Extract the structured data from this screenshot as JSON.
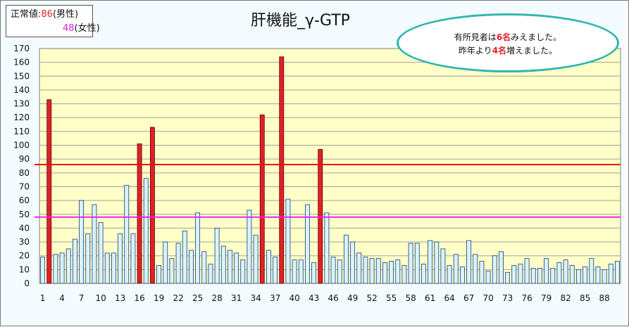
{
  "legend": {
    "label": "正常値:",
    "male_value": "86",
    "male_unit": "(男性)",
    "female_value": "48",
    "female_unit": "(女性)"
  },
  "note": {
    "line1_prefix": "有所見者は",
    "line1_count": "6名",
    "line1_suffix": "みえました。",
    "line2_prefix": "昨年より",
    "line2_count": "4名",
    "line2_suffix": "増えました。"
  },
  "colors": {
    "normal_bar": "#d8f4fb",
    "normal_bar_edge": "#1a3a7a",
    "abnormal_bar": "#e0202a",
    "abnormal_bar_edge": "#600000",
    "plot_background": "#ffffc8",
    "male_line": "#ff0000",
    "female_line": "#ee22ee",
    "note_border": "#2fb7b0"
  },
  "chart_data": {
    "type": "bar",
    "title": "肝機能_γ-GTP",
    "xlabel": "",
    "ylabel": "",
    "ylim": [
      0,
      170
    ],
    "ytick_step": 10,
    "yticks": [
      "0",
      "10",
      "20",
      "30",
      "40",
      "50",
      "60",
      "70",
      "80",
      "90",
      "100",
      "110",
      "120",
      "130",
      "140",
      "150",
      "160",
      "170"
    ],
    "xtick_labels": [
      "1",
      "4",
      "7",
      "10",
      "13",
      "16",
      "19",
      "22",
      "25",
      "28",
      "31",
      "34",
      "37",
      "40",
      "43",
      "46",
      "49",
      "52",
      "55",
      "58",
      "61",
      "64",
      "67",
      "70",
      "73",
      "76",
      "79",
      "82",
      "85",
      "88"
    ],
    "grid": true,
    "reference_lines": [
      {
        "value": 86,
        "color": "#ff0000"
      },
      {
        "value": 48,
        "color": "#ee22ee"
      }
    ],
    "values": [
      19,
      133,
      21,
      22,
      25,
      32,
      60,
      36,
      57,
      44,
      22,
      22,
      36,
      71,
      36,
      101,
      76,
      113,
      13,
      30,
      18,
      29,
      38,
      24,
      51,
      23,
      14,
      40,
      27,
      24,
      22,
      17,
      53,
      35,
      122,
      24,
      19,
      164,
      61,
      17,
      17,
      57,
      15,
      97,
      51,
      19,
      17,
      35,
      30,
      22,
      19,
      18,
      18,
      15,
      16,
      17,
      13,
      29,
      29,
      14,
      31,
      30,
      25,
      13,
      21,
      12,
      31,
      21,
      16,
      9,
      20,
      23,
      8,
      13,
      14,
      18,
      11,
      11,
      18,
      11,
      15,
      17,
      13,
      10,
      12,
      18,
      12,
      10,
      14,
      16
    ],
    "abnormal_indices": [
      2,
      16,
      18,
      35,
      38,
      44
    ]
  }
}
